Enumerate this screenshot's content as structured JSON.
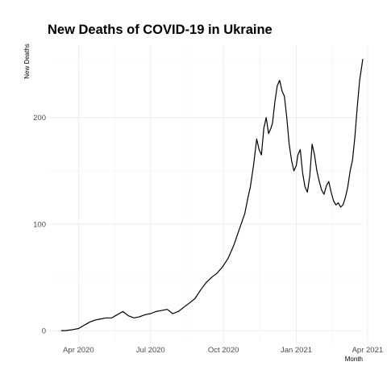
{
  "chart_data": {
    "type": "line",
    "title": "New Deaths of COVID-19 in Ukraine",
    "xlabel": "Month",
    "ylabel": "New Deaths",
    "grid": true,
    "xlim": [
      "2020-02-25",
      "2021-03-26"
    ],
    "ylim": [
      -12,
      268
    ],
    "x_ticks": [
      {
        "date": "2020-04-01",
        "label": "Apr 2020"
      },
      {
        "date": "2020-07-01",
        "label": "Jul 2020"
      },
      {
        "date": "2020-10-01",
        "label": "Oct 2020"
      },
      {
        "date": "2021-01-01",
        "label": "Jan 2021"
      },
      {
        "date": "2021-04-01",
        "label": "Apr 2021"
      }
    ],
    "y_ticks": [
      0,
      100,
      200
    ],
    "line_color": "#000000",
    "series": [
      {
        "x": [
          "2020-03-10",
          "2020-03-15",
          "2020-03-20",
          "2020-03-25",
          "2020-04-01",
          "2020-04-08",
          "2020-04-15",
          "2020-04-22",
          "2020-04-29",
          "2020-05-06",
          "2020-05-13",
          "2020-05-20",
          "2020-05-27",
          "2020-06-03",
          "2020-06-10",
          "2020-06-17",
          "2020-06-24",
          "2020-07-01",
          "2020-07-08",
          "2020-07-15",
          "2020-07-22",
          "2020-07-29",
          "2020-08-05",
          "2020-08-12",
          "2020-08-19",
          "2020-08-26",
          "2020-09-02",
          "2020-09-09",
          "2020-09-16",
          "2020-09-23",
          "2020-09-30",
          "2020-10-07",
          "2020-10-14",
          "2020-10-21",
          "2020-10-28",
          "2020-11-01",
          "2020-11-04",
          "2020-11-08",
          "2020-11-12",
          "2020-11-15",
          "2020-11-18",
          "2020-11-21",
          "2020-11-24",
          "2020-11-27",
          "2020-11-30",
          "2020-12-02",
          "2020-12-05",
          "2020-12-08",
          "2020-12-11",
          "2020-12-14",
          "2020-12-17",
          "2020-12-20",
          "2020-12-23",
          "2020-12-26",
          "2020-12-29",
          "2021-01-01",
          "2021-01-03",
          "2021-01-06",
          "2021-01-09",
          "2021-01-12",
          "2021-01-15",
          "2021-01-18",
          "2021-01-21",
          "2021-01-24",
          "2021-01-27",
          "2021-01-30",
          "2021-02-02",
          "2021-02-05",
          "2021-02-08",
          "2021-02-11",
          "2021-02-14",
          "2021-02-17",
          "2021-02-20",
          "2021-02-23",
          "2021-02-26",
          "2021-03-01",
          "2021-03-04",
          "2021-03-07",
          "2021-03-10",
          "2021-03-13",
          "2021-03-16",
          "2021-03-19",
          "2021-03-22",
          "2021-03-24",
          "2021-03-26"
        ],
        "y": [
          0,
          0,
          0.5,
          1,
          2,
          5,
          8,
          10,
          11,
          12,
          12,
          15,
          18,
          14,
          12,
          13,
          15,
          16,
          18,
          19,
          20,
          16,
          18,
          22,
          26,
          30,
          38,
          45,
          50,
          54,
          60,
          68,
          80,
          95,
          110,
          125,
          135,
          155,
          180,
          170,
          165,
          190,
          200,
          185,
          190,
          195,
          215,
          230,
          235,
          225,
          220,
          200,
          175,
          160,
          150,
          155,
          165,
          170,
          148,
          135,
          130,
          145,
          175,
          165,
          150,
          140,
          132,
          128,
          136,
          140,
          130,
          122,
          118,
          120,
          116,
          118,
          125,
          135,
          150,
          160,
          182,
          210,
          235,
          245,
          255
        ]
      }
    ]
  }
}
